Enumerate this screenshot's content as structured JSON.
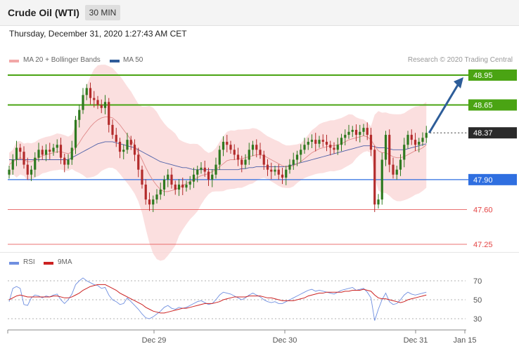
{
  "header": {
    "title": "Crude Oil (WTI)",
    "timeframe": "30 MIN"
  },
  "timestamp": "Thursday, December 31, 2020 1:27:43 AM CET",
  "attribution": "Research © 2020 Trading Central",
  "legend": {
    "ma20_label": "MA 20 + Bollinger Bands",
    "ma50_label": "MA 50",
    "rsi_label": "RSI",
    "rsi_ma_label": "9MA"
  },
  "colors": {
    "green": "#4aa413",
    "blue": "#2f6fe0",
    "red": "#e44444",
    "pink_band": "#f9d4d4",
    "bull": "#2e7a1f",
    "bear": "#b32b2b",
    "ma50": "#4c5fa8",
    "ma20": "#e08b8b",
    "current": "#2a2a2a",
    "arrow": "#2d5d99"
  },
  "chart_data": {
    "type": "candlestick",
    "title": "Crude Oil (WTI)",
    "timeframe": "30 MIN",
    "xlabel": "",
    "ylabel": "",
    "x_ticks": [
      "Dec 29",
      "Dec 30",
      "Dec 31",
      "Jan 15"
    ],
    "y_range": [
      47.07,
      49.06
    ],
    "grid": false,
    "levels": [
      {
        "price": 48.95,
        "label": "48.95",
        "kind": "resistance"
      },
      {
        "price": 48.65,
        "label": "48.65",
        "kind": "resistance"
      },
      {
        "price": 48.37,
        "label": "48.37",
        "kind": "current"
      },
      {
        "price": 47.9,
        "label": "47.90",
        "kind": "pivot"
      },
      {
        "price": 47.6,
        "label": "47.60",
        "kind": "support"
      },
      {
        "price": 47.25,
        "label": "47.25",
        "kind": "support"
      }
    ],
    "forecast_target": 48.95,
    "close_series": [
      48.0,
      48.1,
      48.22,
      48.18,
      48.05,
      47.95,
      48.0,
      48.12,
      48.2,
      48.15,
      48.2,
      48.18,
      48.22,
      48.25,
      48.12,
      48.05,
      48.1,
      48.22,
      48.5,
      48.6,
      48.75,
      48.82,
      48.72,
      48.7,
      48.65,
      48.62,
      48.68,
      48.45,
      48.35,
      48.28,
      48.18,
      48.2,
      48.3,
      48.25,
      48.15,
      48.0,
      47.85,
      47.7,
      47.65,
      47.7,
      47.75,
      47.8,
      47.9,
      47.95,
      47.85,
      47.8,
      47.85,
      47.82,
      47.85,
      47.88,
      47.95,
      48.0,
      48.02,
      47.98,
      47.9,
      47.95,
      48.05,
      48.2,
      48.28,
      48.25,
      48.2,
      48.15,
      48.1,
      48.05,
      48.1,
      48.2,
      48.25,
      48.2,
      48.15,
      48.05,
      48.0,
      47.98,
      48.0,
      47.95,
      47.92,
      48.0,
      48.05,
      48.1,
      48.15,
      48.2,
      48.25,
      48.28,
      48.3,
      48.26,
      48.3,
      48.28,
      48.25,
      48.22,
      48.2,
      48.25,
      48.32,
      48.35,
      48.38,
      48.4,
      48.35,
      48.38,
      48.42,
      48.35,
      48.2,
      47.65,
      47.7,
      48.1,
      48.35,
      48.05,
      47.95,
      48.0,
      48.1,
      48.25,
      48.35,
      48.3,
      48.25,
      48.28,
      48.32,
      48.37
    ],
    "ma20_series": [
      48.05,
      48.08,
      48.1,
      48.12,
      48.1,
      48.08,
      48.08,
      48.1,
      48.12,
      48.14,
      48.15,
      48.16,
      48.17,
      48.18,
      48.18,
      48.17,
      48.16,
      48.18,
      48.22,
      48.27,
      48.33,
      48.38,
      48.43,
      48.47,
      48.5,
      48.52,
      48.53,
      48.53,
      48.52,
      48.49,
      48.45,
      48.4,
      48.35,
      48.3,
      48.24,
      48.17,
      48.1,
      48.02,
      47.95,
      47.89,
      47.84,
      47.8,
      47.78,
      47.78,
      47.79,
      47.8,
      47.82,
      47.84,
      47.86,
      47.88,
      47.9,
      47.92,
      47.94,
      47.95,
      47.96,
      47.98,
      48.0,
      48.03,
      48.06,
      48.09,
      48.1,
      48.1,
      48.11,
      48.11,
      48.12,
      48.13,
      48.14,
      48.15,
      48.15,
      48.14,
      48.12,
      48.1,
      48.08,
      48.06,
      48.04,
      48.03,
      48.03,
      48.04,
      48.06,
      48.08,
      48.11,
      48.14,
      48.17,
      48.19,
      48.21,
      48.22,
      48.23,
      48.24,
      48.24,
      48.25,
      48.26,
      48.28,
      48.3,
      48.31,
      48.32,
      48.33,
      48.34,
      48.33,
      48.3,
      48.24,
      48.19,
      48.17,
      48.17,
      48.15,
      48.13,
      48.12,
      48.12,
      48.13,
      48.15,
      48.17,
      48.19,
      48.2,
      48.22,
      48.25
    ],
    "ma50_series": [
      48.1,
      48.1,
      48.1,
      48.1,
      48.1,
      48.1,
      48.1,
      48.1,
      48.1,
      48.1,
      48.1,
      48.1,
      48.1,
      48.1,
      48.1,
      48.1,
      48.1,
      48.12,
      48.14,
      48.16,
      48.18,
      48.2,
      48.22,
      48.24,
      48.26,
      48.27,
      48.28,
      48.28,
      48.28,
      48.27,
      48.26,
      48.25,
      48.24,
      48.23,
      48.22,
      48.2,
      48.18,
      48.16,
      48.14,
      48.12,
      48.1,
      48.08,
      48.07,
      48.06,
      48.05,
      48.04,
      48.03,
      48.02,
      48.02,
      48.01,
      48.0,
      48.0,
      48.0,
      48.0,
      48.0,
      48.0,
      48.0,
      48.0,
      48.0,
      48.0,
      48.0,
      48.0,
      48.0,
      48.01,
      48.01,
      48.02,
      48.02,
      48.03,
      48.03,
      48.03,
      48.03,
      48.03,
      48.03,
      48.03,
      48.03,
      48.03,
      48.04,
      48.05,
      48.06,
      48.07,
      48.08,
      48.09,
      48.1,
      48.11,
      48.12,
      48.13,
      48.14,
      48.15,
      48.16,
      48.17,
      48.18,
      48.19,
      48.2,
      48.21,
      48.22,
      48.23,
      48.24,
      48.24,
      48.24,
      48.23,
      48.22,
      48.22,
      48.22,
      48.21,
      48.2,
      48.2,
      48.2,
      48.2,
      48.21,
      48.22,
      48.23,
      48.24,
      48.25,
      48.26
    ],
    "rsi": {
      "range": [
        20,
        80
      ],
      "ticks": [
        70,
        50,
        30
      ],
      "rsi_series": [
        48,
        62,
        64,
        62,
        45,
        44,
        52,
        55,
        54,
        52,
        54,
        53,
        55,
        56,
        50,
        46,
        50,
        56,
        66,
        70,
        73,
        70,
        68,
        66,
        65,
        62,
        63,
        55,
        50,
        48,
        45,
        46,
        52,
        48,
        44,
        40,
        35,
        31,
        30,
        32,
        35,
        38,
        42,
        44,
        41,
        40,
        42,
        41,
        42,
        44,
        46,
        48,
        49,
        47,
        45,
        46,
        50,
        55,
        58,
        57,
        56,
        54,
        52,
        50,
        52,
        55,
        57,
        55,
        53,
        50,
        48,
        47,
        48,
        46,
        46,
        48,
        50,
        52,
        54,
        56,
        58,
        60,
        61,
        59,
        60,
        59,
        58,
        57,
        56,
        58,
        60,
        61,
        62,
        63,
        60,
        61,
        62,
        58,
        52,
        28,
        40,
        50,
        57,
        48,
        45,
        46,
        50,
        55,
        58,
        56,
        55,
        56,
        57,
        58
      ],
      "ma9_series": [
        50,
        52,
        54,
        55,
        54,
        53,
        53,
        53,
        53,
        53,
        53,
        53,
        54,
        54,
        53,
        52,
        52,
        53,
        55,
        57,
        60,
        62,
        64,
        65,
        66,
        66,
        66,
        64,
        62,
        60,
        57,
        55,
        53,
        51,
        49,
        47,
        45,
        42,
        40,
        38,
        37,
        36,
        36,
        37,
        38,
        39,
        40,
        41,
        41,
        42,
        43,
        44,
        45,
        46,
        46,
        46,
        47,
        48,
        50,
        51,
        52,
        53,
        53,
        53,
        53,
        54,
        54,
        54,
        54,
        53,
        52,
        52,
        51,
        50,
        49,
        49,
        49,
        49,
        50,
        51,
        52,
        54,
        55,
        56,
        57,
        57,
        58,
        58,
        58,
        58,
        58,
        59,
        59,
        60,
        60,
        60,
        61,
        60,
        59,
        55,
        52,
        51,
        51,
        50,
        49,
        48,
        47,
        48,
        50,
        51,
        52,
        53,
        54,
        55
      ]
    }
  }
}
